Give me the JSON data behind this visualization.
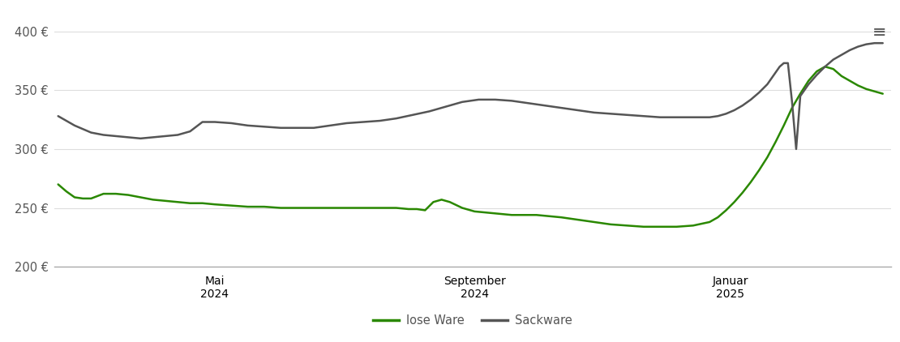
{
  "background_color": "#ffffff",
  "ylim": [
    200,
    415
  ],
  "yticks": [
    200,
    250,
    300,
    350,
    400
  ],
  "ytick_labels": [
    "200 €",
    "250 €",
    "300 €",
    "350 €",
    "400 €"
  ],
  "grid_color": "#dddddd",
  "axis_color": "#aaaaaa",
  "lose_ware_color": "#2a8800",
  "sackware_color": "#555555",
  "legend_labels": [
    "lose Ware",
    "Sackware"
  ],
  "x_tick_positions": [
    0.19,
    0.505,
    0.815
  ],
  "x_tick_labels_top": [
    "Mai",
    "September",
    "Januar"
  ],
  "x_tick_labels_bottom": [
    "2024",
    "2024",
    "2025"
  ],
  "lose_ware_x": [
    0.0,
    0.01,
    0.02,
    0.03,
    0.04,
    0.055,
    0.07,
    0.085,
    0.1,
    0.115,
    0.13,
    0.145,
    0.16,
    0.175,
    0.19,
    0.21,
    0.23,
    0.25,
    0.27,
    0.29,
    0.31,
    0.33,
    0.35,
    0.37,
    0.39,
    0.41,
    0.425,
    0.435,
    0.445,
    0.455,
    0.465,
    0.475,
    0.49,
    0.505,
    0.52,
    0.535,
    0.55,
    0.565,
    0.58,
    0.595,
    0.61,
    0.63,
    0.65,
    0.67,
    0.69,
    0.71,
    0.73,
    0.75,
    0.77,
    0.79,
    0.8,
    0.81,
    0.82,
    0.83,
    0.84,
    0.85,
    0.86,
    0.87,
    0.88,
    0.89,
    0.9,
    0.91,
    0.92,
    0.93,
    0.94,
    0.95,
    0.96,
    0.97,
    0.98,
    0.99,
    1.0
  ],
  "lose_ware_y": [
    270,
    264,
    259,
    258,
    258,
    262,
    262,
    261,
    259,
    257,
    256,
    255,
    254,
    254,
    253,
    252,
    251,
    251,
    250,
    250,
    250,
    250,
    250,
    250,
    250,
    250,
    249,
    249,
    248,
    255,
    257,
    255,
    250,
    247,
    246,
    245,
    244,
    244,
    244,
    243,
    242,
    240,
    238,
    236,
    235,
    234,
    234,
    234,
    235,
    238,
    242,
    248,
    255,
    263,
    272,
    282,
    293,
    306,
    320,
    335,
    347,
    358,
    366,
    370,
    368,
    362,
    358,
    354,
    351,
    349,
    347
  ],
  "sackware_x": [
    0.0,
    0.01,
    0.02,
    0.03,
    0.04,
    0.055,
    0.07,
    0.085,
    0.1,
    0.115,
    0.13,
    0.145,
    0.16,
    0.175,
    0.19,
    0.21,
    0.23,
    0.25,
    0.27,
    0.29,
    0.31,
    0.33,
    0.35,
    0.37,
    0.39,
    0.41,
    0.43,
    0.45,
    0.47,
    0.49,
    0.51,
    0.53,
    0.55,
    0.57,
    0.59,
    0.61,
    0.63,
    0.65,
    0.67,
    0.69,
    0.71,
    0.73,
    0.75,
    0.77,
    0.79,
    0.8,
    0.81,
    0.82,
    0.83,
    0.84,
    0.85,
    0.86,
    0.865,
    0.87,
    0.875,
    0.88,
    0.885,
    0.89,
    0.895,
    0.9,
    0.91,
    0.92,
    0.93,
    0.94,
    0.95,
    0.96,
    0.97,
    0.98,
    0.99,
    1.0
  ],
  "sackware_y": [
    328,
    324,
    320,
    317,
    314,
    312,
    311,
    310,
    309,
    310,
    311,
    312,
    315,
    323,
    323,
    322,
    320,
    319,
    318,
    318,
    318,
    320,
    322,
    323,
    324,
    326,
    329,
    332,
    336,
    340,
    342,
    342,
    341,
    339,
    337,
    335,
    333,
    331,
    330,
    329,
    328,
    327,
    327,
    327,
    327,
    328,
    330,
    333,
    337,
    342,
    348,
    355,
    360,
    365,
    370,
    373,
    373,
    340,
    300,
    345,
    355,
    363,
    370,
    376,
    380,
    384,
    387,
    389,
    390,
    390
  ]
}
